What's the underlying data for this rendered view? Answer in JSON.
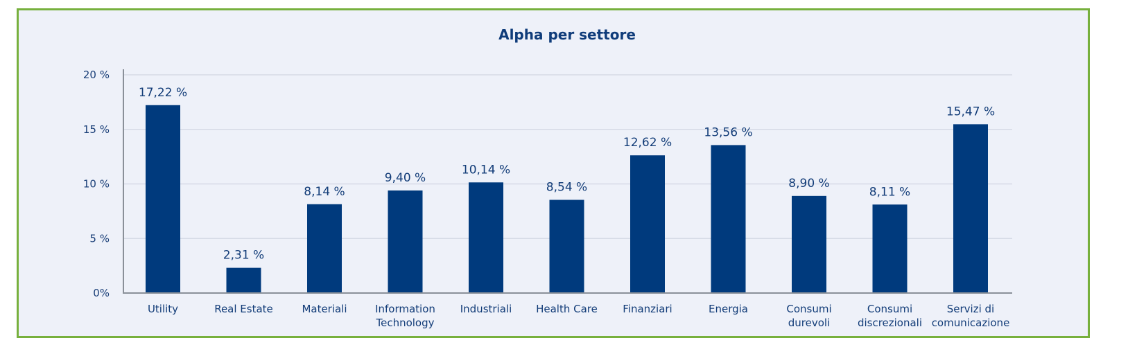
{
  "chart_data": {
    "type": "bar",
    "title": "Alpha per settore",
    "xlabel": "",
    "ylabel": "",
    "ylim": [
      0,
      20
    ],
    "yticks": [
      0,
      5,
      10,
      15,
      20
    ],
    "ytick_labels": [
      "0%",
      "5 %",
      "10 %",
      "15 %",
      "20 %"
    ],
    "grid": true,
    "categories": [
      [
        "Utility"
      ],
      [
        "Real Estate"
      ],
      [
        "Materiali"
      ],
      [
        "Information",
        "Technology"
      ],
      [
        "Industriali"
      ],
      [
        "Health Care"
      ],
      [
        "Finanziari"
      ],
      [
        "Energia"
      ],
      [
        "Consumi",
        "durevoli"
      ],
      [
        "Consumi",
        "discrezionali"
      ],
      [
        "Servizi di",
        "comunicazione"
      ]
    ],
    "values": [
      17.22,
      2.31,
      8.14,
      9.4,
      10.14,
      8.54,
      12.62,
      13.56,
      8.9,
      8.11,
      15.47
    ],
    "value_labels": [
      "17,22 %",
      "2,31 %",
      "8,14 %",
      "9,40 %",
      "10,14 %",
      "8,54 %",
      "12,62 %",
      "13,56 %",
      "8,90 %",
      "8,11 %",
      "15,47 %"
    ],
    "colors": {
      "bar": "#003a7d",
      "border": "#77b03d",
      "background": "#eef1f9",
      "grid": "#d5dae6",
      "axis": "#8a9099"
    }
  }
}
